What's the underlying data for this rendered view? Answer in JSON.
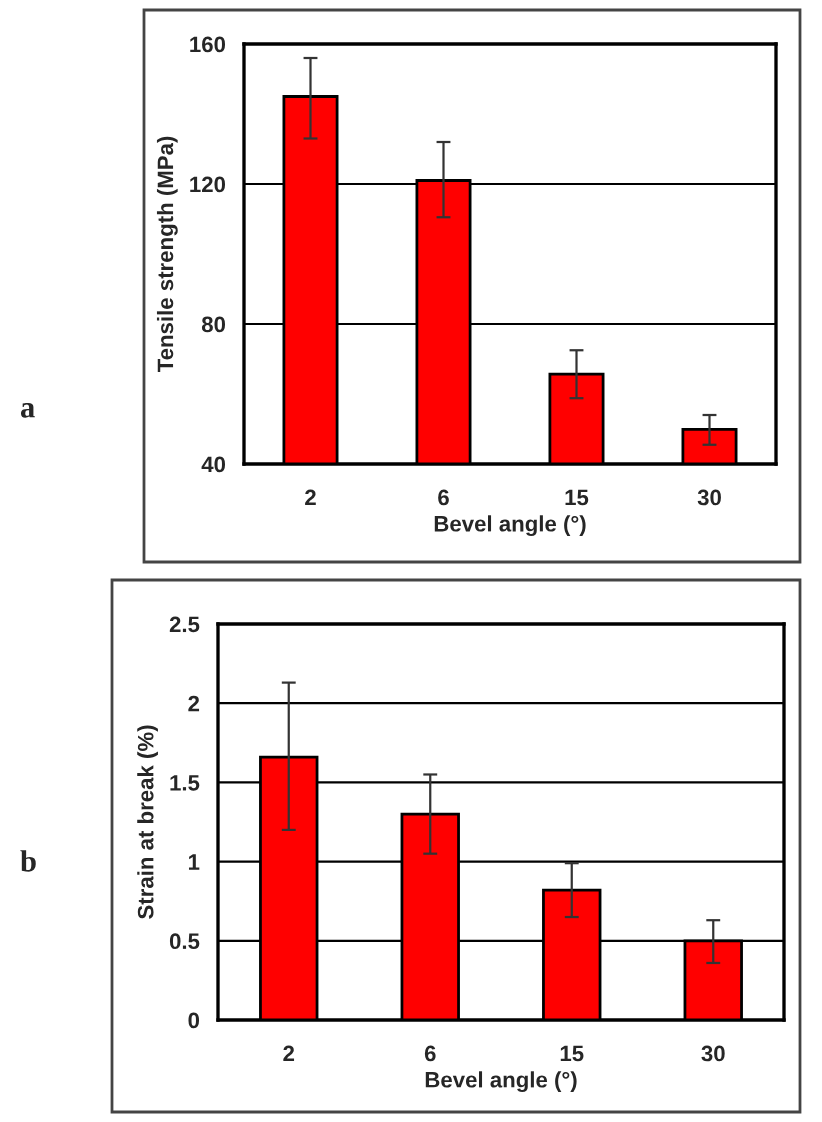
{
  "chart_data": [
    {
      "type": "bar",
      "annotations": [
        "a"
      ],
      "xlabel": "Bevel angle (°)",
      "ylabel": "Tensile strength (MPa)",
      "categories": [
        "2",
        "6",
        "15",
        "30"
      ],
      "values": [
        145,
        121,
        65.7,
        49.9
      ],
      "errors": [
        [
          133,
          156
        ],
        [
          110.5,
          132
        ],
        [
          58.8,
          72.5
        ],
        [
          45.5,
          54
        ]
      ],
      "color": "#ff0000",
      "ylim": [
        40,
        160
      ],
      "yticks": [
        40,
        80,
        120,
        160
      ],
      "grid": "y"
    },
    {
      "type": "bar",
      "annotations": [
        "b"
      ],
      "xlabel": "Bevel angle (°)",
      "ylabel": "Strain at break (%)",
      "categories": [
        "2",
        "6",
        "15",
        "30"
      ],
      "values": [
        1.66,
        1.3,
        0.82,
        0.5
      ],
      "errors": [
        [
          1.2,
          2.13
        ],
        [
          1.05,
          1.55
        ],
        [
          0.65,
          0.99
        ],
        [
          0.36,
          0.63
        ]
      ],
      "color": "#ff0000",
      "ylim": [
        0,
        2.5
      ],
      "yticks": [
        0,
        0.5,
        1,
        1.5,
        2,
        2.5
      ],
      "grid": "y"
    }
  ]
}
